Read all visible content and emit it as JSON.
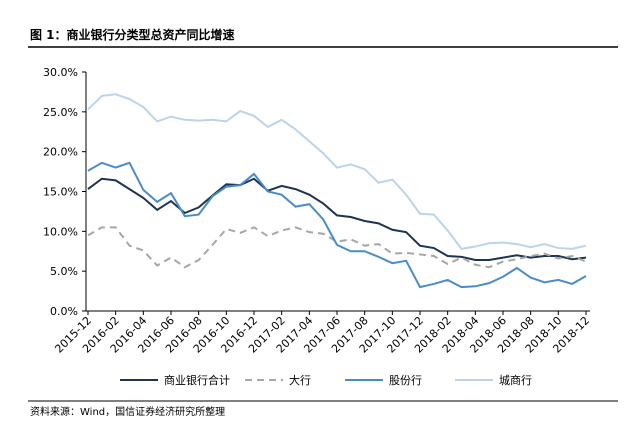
{
  "chart_data": {
    "type": "line",
    "title": "图 1：商业银行分类型总资产同比增速",
    "source": "资料来源：Wind，国信证券经济研究所整理",
    "categories": [
      "2015-12",
      null,
      "2016-02",
      null,
      "2016-04",
      null,
      "2016-06",
      null,
      "2016-08",
      null,
      "2016-10",
      null,
      "2016-12",
      null,
      "2017-02",
      null,
      "2017-04",
      null,
      "2017-06",
      null,
      "2017-08",
      null,
      "2017-10",
      null,
      "2017-12",
      null,
      "2018-02",
      null,
      "2018-04",
      null,
      "2018-06",
      null,
      "2018-08",
      null,
      "2018-10",
      null,
      "2018-12"
    ],
    "series": [
      {
        "name": "商业银行合计",
        "color": "#1f3352",
        "dash": false,
        "values": [
          15.3,
          16.6,
          16.4,
          15.3,
          14.2,
          12.7,
          13.8,
          12.3,
          13.0,
          14.5,
          15.9,
          15.8,
          16.6,
          15.1,
          15.7,
          15.3,
          14.6,
          13.5,
          12.0,
          11.8,
          11.3,
          11.0,
          10.2,
          9.9,
          8.2,
          7.9,
          6.9,
          6.8,
          6.4,
          6.4,
          6.7,
          7.0,
          6.7,
          6.9,
          6.9,
          6.5,
          6.7
        ]
      },
      {
        "name": "大行",
        "color": "#a6a6a6",
        "dash": true,
        "values": [
          9.5,
          10.5,
          10.5,
          8.2,
          7.6,
          5.7,
          6.7,
          5.5,
          6.4,
          8.3,
          10.3,
          9.8,
          10.5,
          9.4,
          10.1,
          10.5,
          9.9,
          9.7,
          8.7,
          9.0,
          8.2,
          8.4,
          7.2,
          7.3,
          7.1,
          6.9,
          5.9,
          6.7,
          5.8,
          5.5,
          6.2,
          6.5,
          6.9,
          7.2,
          6.6,
          6.9,
          6.2
        ]
      },
      {
        "name": "股份行",
        "color": "#4a8cc9",
        "dash": false,
        "values": [
          17.6,
          18.6,
          18.0,
          18.6,
          15.2,
          13.7,
          14.8,
          11.9,
          12.1,
          14.4,
          15.6,
          15.8,
          17.2,
          15.0,
          14.6,
          13.1,
          13.4,
          11.5,
          8.3,
          7.5,
          7.5,
          6.8,
          6.0,
          6.3,
          3.0,
          3.4,
          3.9,
          3.0,
          3.1,
          3.5,
          4.3,
          5.4,
          4.2,
          3.6,
          3.9,
          3.4,
          4.4
        ]
      },
      {
        "name": "城商行",
        "color": "#bdd3ea",
        "dash": false,
        "values": [
          25.3,
          27.0,
          27.2,
          26.6,
          25.6,
          23.8,
          24.4,
          24.0,
          23.9,
          24.0,
          23.8,
          25.1,
          24.5,
          23.1,
          24.0,
          22.8,
          21.3,
          19.8,
          18.0,
          18.4,
          17.8,
          16.1,
          16.5,
          14.6,
          12.2,
          12.1,
          10.1,
          7.8,
          8.1,
          8.5,
          8.6,
          8.4,
          8.0,
          8.4,
          7.9,
          7.8,
          8.2
        ]
      }
    ],
    "ylim": [
      0,
      30
    ],
    "yticks": [
      {
        "value": 0,
        "label": "0.0%"
      },
      {
        "value": 5,
        "label": "5.0%"
      },
      {
        "value": 10,
        "label": "10.0%"
      },
      {
        "value": 15,
        "label": "15.0%"
      },
      {
        "value": 20,
        "label": "20.0%"
      },
      {
        "value": 25,
        "label": "25.0%"
      },
      {
        "value": 30,
        "label": "30.0%"
      }
    ]
  }
}
